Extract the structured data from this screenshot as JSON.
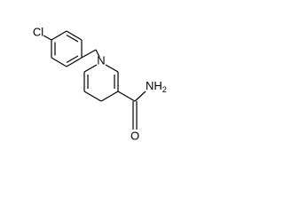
{
  "atoms": {
    "chlorine": "Cl",
    "ring_nitrogen": "N",
    "amide_nitrogen": "NH",
    "amide_nitrogen_subscript": "2",
    "oxygen": "O"
  }
}
